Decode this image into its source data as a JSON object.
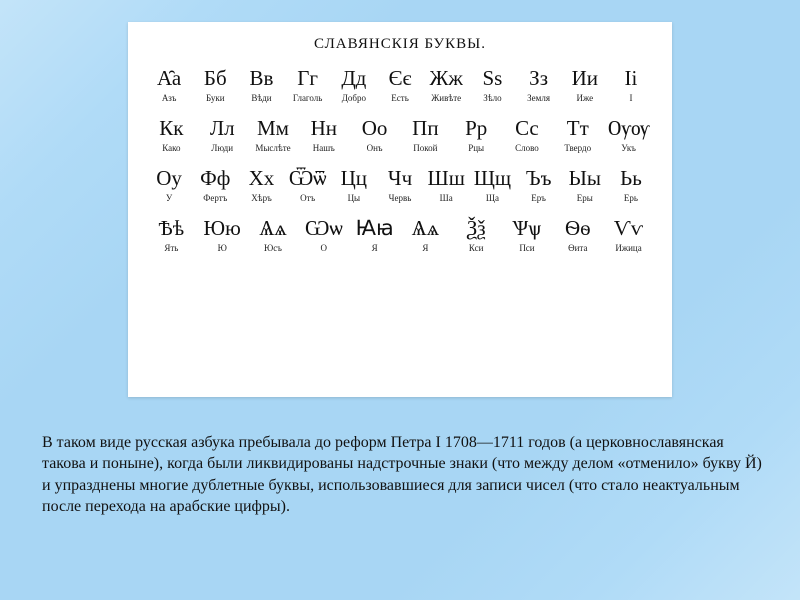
{
  "card": {
    "title": "СЛАВЯНСКІЯ БУКВЫ.",
    "background": "#ffffff",
    "title_fontsize": 15,
    "glyph_fontsize": 21,
    "name_fontsize": 9,
    "rows": [
      [
        {
          "glyph": "А̑а",
          "name": "Азъ"
        },
        {
          "glyph": "Бб",
          "name": "Буки"
        },
        {
          "glyph": "Вв",
          "name": "Вѣди"
        },
        {
          "glyph": "Гг",
          "name": "Глаголь"
        },
        {
          "glyph": "Дд",
          "name": "Добро"
        },
        {
          "glyph": "Єє",
          "name": "Есть"
        },
        {
          "glyph": "Жж",
          "name": "Живѣте"
        },
        {
          "glyph": "Ѕѕ",
          "name": "Зѣло"
        },
        {
          "glyph": "Зз",
          "name": "Земля"
        },
        {
          "glyph": "Ии",
          "name": "Иже"
        },
        {
          "glyph": "Іі",
          "name": "І"
        }
      ],
      [
        {
          "glyph": "Кк",
          "name": "Како"
        },
        {
          "glyph": "Лл",
          "name": "Люди"
        },
        {
          "glyph": "Мм",
          "name": "Мыслѣте"
        },
        {
          "glyph": "Нн",
          "name": "Нашъ"
        },
        {
          "glyph": "Оо",
          "name": "Онъ"
        },
        {
          "glyph": "Пп",
          "name": "Покой"
        },
        {
          "glyph": "Рр",
          "name": "Рцы"
        },
        {
          "glyph": "Сс",
          "name": "Слово"
        },
        {
          "glyph": "Тт",
          "name": "Твердо"
        },
        {
          "glyph": "Ѹѹ",
          "name": "Укъ"
        }
      ],
      [
        {
          "glyph": "Оу",
          "name": "У"
        },
        {
          "glyph": "Фф",
          "name": "Фертъ"
        },
        {
          "glyph": "Хх",
          "name": "Хѣръ"
        },
        {
          "glyph": "Ѿѿ",
          "name": "Отъ"
        },
        {
          "glyph": "Цц",
          "name": "Цы"
        },
        {
          "glyph": "Чч",
          "name": "Червь"
        },
        {
          "glyph": "Шш",
          "name": "Ша"
        },
        {
          "glyph": "Щщ",
          "name": "Ща"
        },
        {
          "glyph": "Ъъ",
          "name": "Еръ"
        },
        {
          "glyph": "Ыы",
          "name": "Еры"
        },
        {
          "glyph": "Ьь",
          "name": "Ерь"
        }
      ],
      [
        {
          "glyph": "Ѣѣ",
          "name": "Ять"
        },
        {
          "glyph": "Юю",
          "name": "Ю"
        },
        {
          "glyph": "Ѧѧ",
          "name": "Юсъ"
        },
        {
          "glyph": "Ѡѡ",
          "name": "О"
        },
        {
          "glyph": "Ꙗꙗ",
          "name": "Я"
        },
        {
          "glyph": "Ѧѧ",
          "name": "Я"
        },
        {
          "glyph": "Ѯѯ",
          "name": "Кси"
        },
        {
          "glyph": "Ѱѱ",
          "name": "Пси"
        },
        {
          "glyph": "Ѳѳ",
          "name": "Ѳита"
        },
        {
          "glyph": "Ѵѵ",
          "name": "Ижица"
        }
      ]
    ]
  },
  "caption": {
    "text": "В таком виде русская азбука пребывала до реформ Петра I 1708—1711 годов (а церковнославянская такова и поныне), когда были ликвидированы надстрочные знаки (что между делом «отменило» букву Й) и упразднены многие дублетные буквы, использовавшиеся для записи чисел (что стало неактуальным после перехода на арабские цифры).",
    "fontsize": 16,
    "color": "#111111"
  },
  "page": {
    "background_gradient": [
      "#c3e4f9",
      "#a8d6f4",
      "#c3e4f9"
    ]
  }
}
